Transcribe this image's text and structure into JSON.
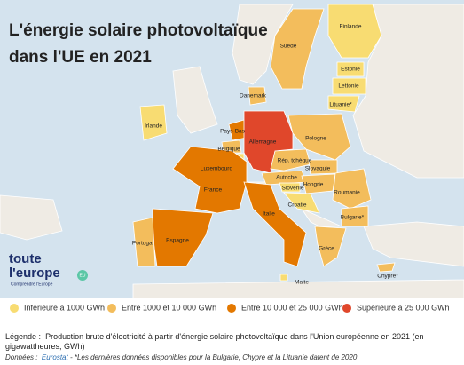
{
  "title": [
    "L'énergie solaire photovoltaïque",
    "dans l'UE en 2021"
  ],
  "logo": {
    "line1": "toute",
    "line2": "l'europe",
    "tagline": "Comprendre l'Europe",
    "badge": "EU"
  },
  "legend": [
    {
      "label": "Inférieure à 1000 GWh",
      "color": "#f8dc72"
    },
    {
      "label": "Entre 1000 et 10 000 GWh",
      "color": "#f3bd5c"
    },
    {
      "label": "Entre 10 000 et 25 000 GWh",
      "color": "#e37800"
    },
    {
      "label": "Supérieure à 25 000 GWh",
      "color": "#e0472b"
    }
  ],
  "countries": [
    {
      "label": "Finlande",
      "class": 0
    },
    {
      "label": "Suède",
      "class": 1
    },
    {
      "label": "Estonie",
      "class": 0
    },
    {
      "label": "Lettonie",
      "class": 0
    },
    {
      "label": "Danemark",
      "class": 1
    },
    {
      "label": "Lituanie*",
      "class": 0
    },
    {
      "label": "Irlande",
      "class": 0
    },
    {
      "label": "Pays-Bas",
      "class": 2
    },
    {
      "label": "Allemagne",
      "class": 3
    },
    {
      "label": "Pologne",
      "class": 1
    },
    {
      "label": "Belgique",
      "class": 1
    },
    {
      "label": "Rép. tchèque",
      "class": 1
    },
    {
      "label": "Luxembourg",
      "class": 0
    },
    {
      "label": "Slovaquie",
      "class": 1
    },
    {
      "label": "Autriche",
      "class": 1
    },
    {
      "label": "Hongrie",
      "class": 1
    },
    {
      "label": "France",
      "class": 2
    },
    {
      "label": "Slovénie",
      "class": 0
    },
    {
      "label": "Roumanie",
      "class": 1
    },
    {
      "label": "Croatie",
      "class": 0
    },
    {
      "label": "Italie",
      "class": 2
    },
    {
      "label": "Bulgarie*",
      "class": 1
    },
    {
      "label": "Espagne",
      "class": 2
    },
    {
      "label": "Portugal",
      "class": 1
    },
    {
      "label": "Grèce",
      "class": 1
    },
    {
      "label": "Malte",
      "class": 0
    },
    {
      "label": "Chypre*",
      "class": 1
    }
  ],
  "caption": {
    "prefix": "Légende :",
    "text": "Production brute d'électricité à partir d'énergie solaire photovoltaïque dans l'Union européenne en 2021 (en gigawattheures, GWh)"
  },
  "source": {
    "prefix": "Données :",
    "name": "Eurostat",
    "note": "- *Les dernières données disponibles pour la Bulgarie, Chypre et la Lituanie datent de 2020"
  }
}
